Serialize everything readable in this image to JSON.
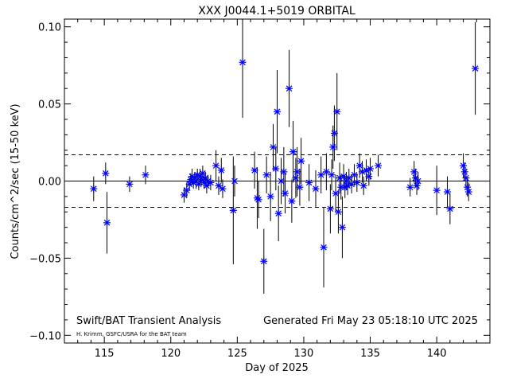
{
  "chart_data": {
    "type": "scatter",
    "title": "XXX J0044.1+5019 ORBITAL",
    "xlabel": "Day of 2025",
    "ylabel": "Counts/cm^2/sec (15-50 keV)",
    "xlim": [
      112,
      144
    ],
    "ylim": [
      -0.105,
      0.105
    ],
    "x_ticks": [
      115,
      120,
      125,
      130,
      135,
      140
    ],
    "x_tick_labels": [
      "115",
      "120",
      "125",
      "130",
      "135",
      "140"
    ],
    "y_ticks": [
      -0.1,
      -0.05,
      0.0,
      0.05,
      0.1
    ],
    "y_tick_labels": [
      "−0.10",
      "−0.05",
      "0.00",
      "0.05",
      "0.10"
    ],
    "reference_lines": [
      {
        "y": 0.0,
        "style": "solid"
      },
      {
        "y": 0.017,
        "style": "dashed"
      },
      {
        "y": -0.017,
        "style": "dashed"
      }
    ],
    "marker": "asterisk",
    "marker_color": "#0000ff",
    "grid": false,
    "points": [
      {
        "x": 114.2,
        "y": -0.005,
        "err": 0.008
      },
      {
        "x": 115.1,
        "y": 0.005,
        "err": 0.007
      },
      {
        "x": 115.2,
        "y": -0.027,
        "err": 0.02
      },
      {
        "x": 116.9,
        "y": -0.002,
        "err": 0.005
      },
      {
        "x": 118.1,
        "y": 0.004,
        "err": 0.006
      },
      {
        "x": 121.0,
        "y": -0.009,
        "err": 0.005
      },
      {
        "x": 121.2,
        "y": -0.006,
        "err": 0.005
      },
      {
        "x": 121.4,
        "y": -0.002,
        "err": 0.004
      },
      {
        "x": 121.5,
        "y": 0.001,
        "err": 0.004
      },
      {
        "x": 121.6,
        "y": 0.003,
        "err": 0.005
      },
      {
        "x": 121.7,
        "y": -0.001,
        "err": 0.004
      },
      {
        "x": 121.8,
        "y": 0.002,
        "err": 0.004
      },
      {
        "x": 121.9,
        "y": 0.0,
        "err": 0.005
      },
      {
        "x": 122.0,
        "y": 0.004,
        "err": 0.004
      },
      {
        "x": 122.1,
        "y": -0.002,
        "err": 0.004
      },
      {
        "x": 122.2,
        "y": 0.003,
        "err": 0.005
      },
      {
        "x": 122.3,
        "y": 0.001,
        "err": 0.004
      },
      {
        "x": 122.4,
        "y": 0.005,
        "err": 0.005
      },
      {
        "x": 122.5,
        "y": -0.001,
        "err": 0.004
      },
      {
        "x": 122.6,
        "y": 0.002,
        "err": 0.004
      },
      {
        "x": 122.7,
        "y": -0.003,
        "err": 0.005
      },
      {
        "x": 122.8,
        "y": 0.0,
        "err": 0.004
      },
      {
        "x": 123.0,
        "y": -0.001,
        "err": 0.005
      },
      {
        "x": 123.4,
        "y": 0.01,
        "err": 0.01
      },
      {
        "x": 123.6,
        "y": -0.003,
        "err": 0.006
      },
      {
        "x": 123.8,
        "y": 0.007,
        "err": 0.008
      },
      {
        "x": 123.9,
        "y": -0.005,
        "err": 0.006
      },
      {
        "x": 124.7,
        "y": -0.019,
        "err": 0.035
      },
      {
        "x": 124.8,
        "y": 0.0,
        "err": 0.01
      },
      {
        "x": 125.4,
        "y": 0.077,
        "err": 0.036
      },
      {
        "x": 126.3,
        "y": 0.007,
        "err": 0.012
      },
      {
        "x": 126.5,
        "y": -0.011,
        "err": 0.02
      },
      {
        "x": 126.6,
        "y": -0.012,
        "err": 0.012
      },
      {
        "x": 127.0,
        "y": -0.052,
        "err": 0.021
      },
      {
        "x": 127.2,
        "y": 0.004,
        "err": 0.012
      },
      {
        "x": 127.5,
        "y": -0.01,
        "err": 0.016
      },
      {
        "x": 127.7,
        "y": 0.022,
        "err": 0.015
      },
      {
        "x": 127.9,
        "y": 0.008,
        "err": 0.014
      },
      {
        "x": 128.0,
        "y": 0.045,
        "err": 0.027
      },
      {
        "x": 128.1,
        "y": -0.021,
        "err": 0.018
      },
      {
        "x": 128.3,
        "y": 0.0,
        "err": 0.015
      },
      {
        "x": 128.5,
        "y": 0.006,
        "err": 0.016
      },
      {
        "x": 128.6,
        "y": -0.008,
        "err": 0.013
      },
      {
        "x": 128.9,
        "y": 0.06,
        "err": 0.025
      },
      {
        "x": 129.1,
        "y": -0.013,
        "err": 0.014
      },
      {
        "x": 129.2,
        "y": 0.019,
        "err": 0.02
      },
      {
        "x": 129.4,
        "y": 0.002,
        "err": 0.013
      },
      {
        "x": 129.5,
        "y": 0.006,
        "err": 0.016
      },
      {
        "x": 129.7,
        "y": -0.004,
        "err": 0.012
      },
      {
        "x": 129.8,
        "y": 0.013,
        "err": 0.015
      },
      {
        "x": 130.4,
        "y": -0.001,
        "err": 0.012
      },
      {
        "x": 130.9,
        "y": -0.005,
        "err": 0.012
      },
      {
        "x": 131.3,
        "y": 0.004,
        "err": 0.012
      },
      {
        "x": 131.5,
        "y": -0.043,
        "err": 0.026
      },
      {
        "x": 131.7,
        "y": 0.006,
        "err": 0.012
      },
      {
        "x": 132.0,
        "y": -0.018,
        "err": 0.016
      },
      {
        "x": 132.1,
        "y": 0.004,
        "err": 0.01
      },
      {
        "x": 132.2,
        "y": 0.022,
        "err": 0.014
      },
      {
        "x": 132.3,
        "y": 0.031,
        "err": 0.018
      },
      {
        "x": 132.4,
        "y": -0.008,
        "err": 0.012
      },
      {
        "x": 132.5,
        "y": 0.045,
        "err": 0.025
      },
      {
        "x": 132.6,
        "y": -0.02,
        "err": 0.014
      },
      {
        "x": 132.7,
        "y": 0.002,
        "err": 0.01
      },
      {
        "x": 132.8,
        "y": -0.004,
        "err": 0.008
      },
      {
        "x": 132.9,
        "y": -0.03,
        "err": 0.02
      },
      {
        "x": 133.0,
        "y": 0.003,
        "err": 0.008
      },
      {
        "x": 133.1,
        "y": -0.004,
        "err": 0.007
      },
      {
        "x": 133.2,
        "y": 0.0,
        "err": 0.006
      },
      {
        "x": 133.3,
        "y": -0.003,
        "err": 0.006
      },
      {
        "x": 133.4,
        "y": 0.002,
        "err": 0.006
      },
      {
        "x": 133.6,
        "y": -0.002,
        "err": 0.006
      },
      {
        "x": 133.8,
        "y": 0.004,
        "err": 0.007
      },
      {
        "x": 134.0,
        "y": -0.001,
        "err": 0.006
      },
      {
        "x": 134.2,
        "y": 0.01,
        "err": 0.008
      },
      {
        "x": 134.4,
        "y": 0.006,
        "err": 0.007
      },
      {
        "x": 134.5,
        "y": -0.003,
        "err": 0.006
      },
      {
        "x": 134.7,
        "y": 0.007,
        "err": 0.007
      },
      {
        "x": 134.9,
        "y": 0.003,
        "err": 0.006
      },
      {
        "x": 135.0,
        "y": 0.008,
        "err": 0.007
      },
      {
        "x": 135.6,
        "y": 0.01,
        "err": 0.007
      },
      {
        "x": 138.0,
        "y": -0.004,
        "err": 0.006
      },
      {
        "x": 138.3,
        "y": 0.006,
        "err": 0.007
      },
      {
        "x": 138.4,
        "y": 0.002,
        "err": 0.006
      },
      {
        "x": 138.5,
        "y": -0.003,
        "err": 0.006
      },
      {
        "x": 138.6,
        "y": 0.0,
        "err": 0.006
      },
      {
        "x": 140.0,
        "y": -0.006,
        "err": 0.016
      },
      {
        "x": 140.8,
        "y": -0.007,
        "err": 0.01
      },
      {
        "x": 141.0,
        "y": -0.018,
        "err": 0.01
      },
      {
        "x": 142.0,
        "y": 0.01,
        "err": 0.008
      },
      {
        "x": 142.1,
        "y": 0.006,
        "err": 0.006
      },
      {
        "x": 142.2,
        "y": 0.002,
        "err": 0.006
      },
      {
        "x": 142.3,
        "y": -0.004,
        "err": 0.006
      },
      {
        "x": 142.4,
        "y": -0.007,
        "err": 0.006
      },
      {
        "x": 142.9,
        "y": 0.073,
        "err": 0.03
      }
    ]
  },
  "footer": {
    "left_main": "Swift/BAT Transient Analysis",
    "left_small": "H. Krimm, GSFC/USRA for the BAT team",
    "right": "Generated Fri May 23 05:18:10 UTC 2025"
  }
}
